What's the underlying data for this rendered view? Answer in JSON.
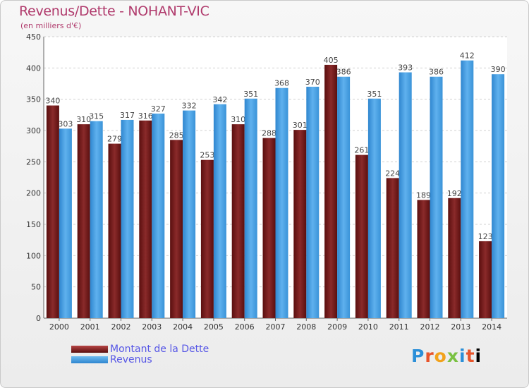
{
  "header": {
    "title": "Revenus/Dette - NOHANT-VIC",
    "subtitle": "(en milliers d'€)"
  },
  "chart_data": {
    "type": "bar",
    "categories": [
      "2000",
      "2001",
      "2002",
      "2003",
      "2004",
      "2005",
      "2006",
      "2007",
      "2008",
      "2009",
      "2010",
      "2011",
      "2012",
      "2013",
      "2014"
    ],
    "series": [
      {
        "name": "Montant de la Dette",
        "color": "#7a1f1f",
        "labels": [
          "340",
          "310",
          "279",
          "316",
          "285",
          "253",
          "310",
          "288",
          "301",
          "405",
          "261",
          "224",
          "189",
          "192",
          "123"
        ],
        "values": [
          340,
          310,
          279,
          316,
          285,
          253,
          310,
          288,
          301,
          405,
          261,
          224,
          189,
          192,
          123
        ]
      },
      {
        "name": "Revenus",
        "color": "#4fa6e6",
        "labels": [
          "303",
          "315",
          "317",
          "327",
          "332",
          "342",
          "351",
          "368",
          "370",
          "386",
          "351",
          "393",
          "386",
          "412",
          "390"
        ],
        "values": [
          303,
          315,
          317,
          327,
          332,
          342,
          351,
          368,
          370,
          386,
          351,
          393,
          386,
          412,
          390
        ]
      }
    ],
    "ylim": [
      0,
      450
    ],
    "yticks": [
      "0",
      "50",
      "100",
      "150",
      "200",
      "250",
      "300",
      "350",
      "400",
      "450"
    ],
    "grid": true,
    "legend_position": "bottom-left"
  },
  "legend": {
    "items": [
      {
        "label": "Montant de la Dette",
        "color": "#7a1f1f"
      },
      {
        "label": "Revenus",
        "color": "#4fa6e6"
      }
    ]
  },
  "logo": {
    "letters": [
      "P",
      "r",
      "o",
      "x",
      "i",
      "t",
      "i"
    ],
    "text": "Proxiti"
  }
}
